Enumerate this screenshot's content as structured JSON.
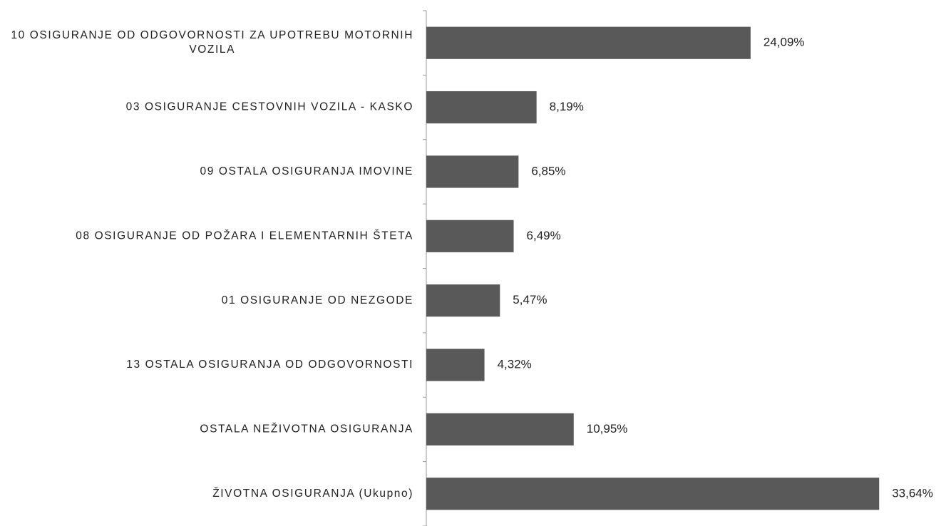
{
  "chart_data": {
    "type": "bar",
    "orientation": "horizontal",
    "categories": [
      "10 OSIGURANJE OD ODGOVORNOSTI ZA UPOTREBU MOTORNIH VOZILA",
      "03 OSIGURANJE CESTOVNIH VOZILA - KASKO",
      "09 OSTALA OSIGURANJA IMOVINE",
      "08 OSIGURANJE OD POŽARA I ELEMENTARNIH ŠTETA",
      "01 OSIGURANJE OD NEZGODE",
      "13 OSTALA OSIGURANJA OD ODGOVORNOSTI",
      "OSTALA NEŽIVOTNA OSIGURANJA",
      "ŽIVOTNA OSIGURANJA (Ukupno)"
    ],
    "values": [
      24.09,
      8.19,
      6.85,
      6.49,
      5.47,
      4.32,
      10.95,
      33.64
    ],
    "value_labels": [
      "24,09%",
      "8,19%",
      "6,85%",
      "6,49%",
      "5,47%",
      "4,32%",
      "10,95%",
      "33,64%"
    ],
    "color": "#595959",
    "xlim": [
      0,
      38.5
    ]
  }
}
